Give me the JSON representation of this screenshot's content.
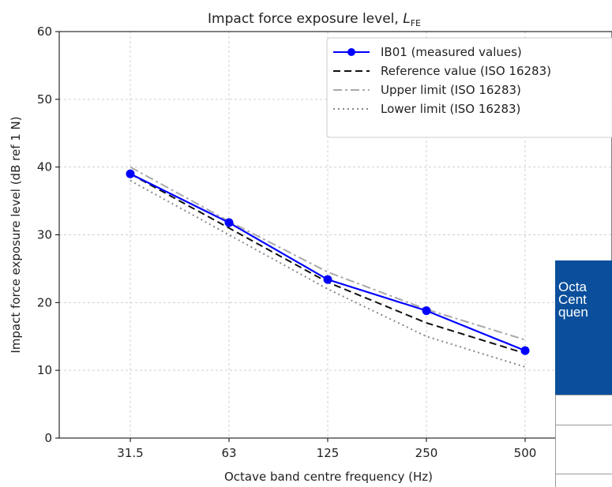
{
  "chart_data": {
    "type": "line",
    "title_text": "Impact force exposure level, ",
    "title_symbol": "L",
    "title_subscript": "FE",
    "xlabel": "Octave band centre frequency (Hz)",
    "ylabel": "Impact force exposure level (dB ref 1 N)",
    "categories": [
      "31.5",
      "63",
      "125",
      "250",
      "500"
    ],
    "ylim": [
      0,
      60
    ],
    "yticks": [
      0,
      10,
      20,
      30,
      40,
      50,
      60
    ],
    "grid": true,
    "legend_position": "top-right",
    "series": [
      {
        "name": "IB01 (measured values)",
        "style": "solid-marker",
        "color": "#0000ff",
        "values": [
          39.0,
          31.8,
          23.4,
          18.8,
          12.9
        ]
      },
      {
        "name": "Reference value (ISO 16283)",
        "style": "dashed",
        "color": "#111111",
        "values": [
          39.0,
          31.0,
          23.0,
          17.0,
          12.5
        ]
      },
      {
        "name": "Upper limit (ISO 16283)",
        "style": "dashdot",
        "color": "#aaaaaa",
        "values": [
          40.0,
          32.0,
          24.5,
          19.0,
          14.5
        ]
      },
      {
        "name": "Lower limit (ISO 16283)",
        "style": "dotted",
        "color": "#888888",
        "values": [
          38.0,
          30.0,
          22.0,
          15.0,
          10.5
        ]
      }
    ]
  },
  "side_table": {
    "header_text": "Octa\nCent\nquen"
  }
}
